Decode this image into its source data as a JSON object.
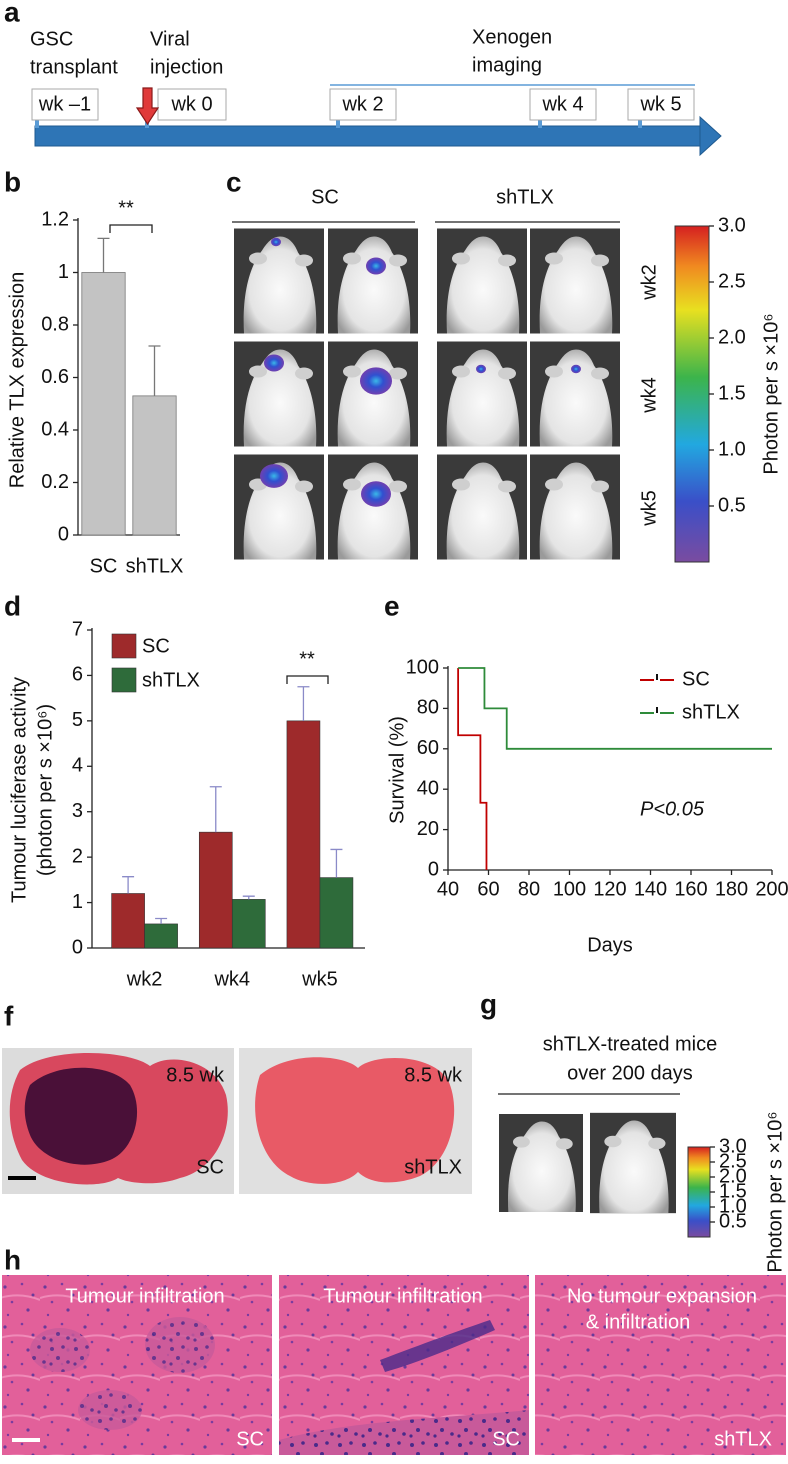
{
  "chart_data": [
    {
      "type": "bar",
      "ylabel": "Relative TLX expression",
      "categories": [
        "SC",
        "shTLX"
      ],
      "values": [
        1,
        0.53
      ],
      "errors": [
        0.13,
        0.19
      ],
      "color": "#c3c3c3",
      "ylim": [
        0,
        1.2
      ],
      "yticks": [
        0,
        0.2,
        0.4,
        0.6,
        0.8,
        1,
        1.2
      ],
      "annotation": "**"
    },
    {
      "type": "bar",
      "ylabel": [
        "Tumour luciferase activity",
        "(photon per s ×10⁶)"
      ],
      "categories": [
        "wk2",
        "wk4",
        "wk5"
      ],
      "series": [
        {
          "name": "SC",
          "color": "#9e2a2b",
          "values": [
            1.2,
            2.55,
            5.0
          ],
          "errors": [
            0.37,
            1.0,
            0.75
          ]
        },
        {
          "name": "shTLX",
          "color": "#2e6b3a",
          "values": [
            0.53,
            1.07,
            1.55
          ],
          "errors": [
            0.12,
            0.07,
            0.62
          ]
        }
      ],
      "ylim": [
        0,
        7
      ],
      "yticks": [
        0,
        1,
        2,
        3,
        4,
        5,
        6,
        7
      ],
      "legend": "upper left",
      "annotation": "**"
    },
    {
      "type": "line",
      "xlabel": "Days",
      "ylabel": "Survival (%)",
      "xlim": [
        40,
        200
      ],
      "xticks": [
        40,
        60,
        80,
        100,
        120,
        140,
        160,
        180,
        200
      ],
      "ylim": [
        0,
        100
      ],
      "yticks": [
        0,
        20,
        40,
        60,
        80,
        100
      ],
      "series": [
        {
          "name": "SC",
          "color": "#c00000",
          "x": [
            45,
            45,
            56,
            56,
            59,
            59
          ],
          "values": [
            100,
            66.7,
            66.7,
            33.3,
            33.3,
            0
          ]
        },
        {
          "name": "shTLX",
          "color": "#2e8b3a",
          "x": [
            45,
            58,
            58,
            69,
            69,
            200
          ],
          "values": [
            100,
            100,
            80,
            80,
            60,
            60
          ]
        }
      ],
      "legend": "upper right",
      "annotation": "P<0.05"
    }
  ],
  "panel_letters": [
    "a",
    "b",
    "c",
    "d",
    "e",
    "f",
    "g",
    "h"
  ],
  "timeline": {
    "top_labels": [
      [
        "GSC",
        "transplant"
      ],
      [
        "Viral",
        "injection"
      ],
      [
        "Xenogen",
        "imaging"
      ]
    ],
    "weeks": [
      "wk –1",
      "wk 0",
      "wk 2",
      "wk 4",
      "wk 5"
    ]
  },
  "imaging_c": {
    "groups": [
      "SC",
      "shTLX"
    ],
    "rows": [
      "wk2",
      "wk4",
      "wk5"
    ],
    "colorbar": {
      "label": "Photon per s ×10⁶",
      "lim": [
        0,
        3
      ],
      "ticks": [
        0.5,
        {
          "value": 1,
          "label": "1.0"
        },
        1.5,
        {
          "value": 2,
          "label": "2.0"
        },
        2.5,
        {
          "value": 3,
          "label": "3.0"
        }
      ]
    }
  },
  "histology_f": {
    "images": [
      {
        "time": "8.5 wk",
        "group": "SC"
      },
      {
        "time": "8.5 wk",
        "group": "shTLX"
      }
    ]
  },
  "imaging_g": {
    "title": [
      "shTLX-treated mice",
      "over 200 days"
    ],
    "colorbar": {
      "label": "Photon per s ×10⁶",
      "lim": [
        0,
        3
      ],
      "ticks": [
        0.5,
        {
          "value": 1,
          "label": "1.0"
        },
        1.5,
        {
          "value": 2,
          "label": "2.0"
        },
        2.5,
        {
          "value": 3,
          "label": "3.0"
        }
      ]
    }
  },
  "histology_h": {
    "images": [
      {
        "caption": [
          "Tumour infiltration"
        ],
        "group": "SC"
      },
      {
        "caption": [
          "Tumour infiltration"
        ],
        "group": "SC"
      },
      {
        "caption": [
          "No tumour expansion",
          "& infiltration"
        ],
        "group": "shTLX"
      }
    ]
  }
}
